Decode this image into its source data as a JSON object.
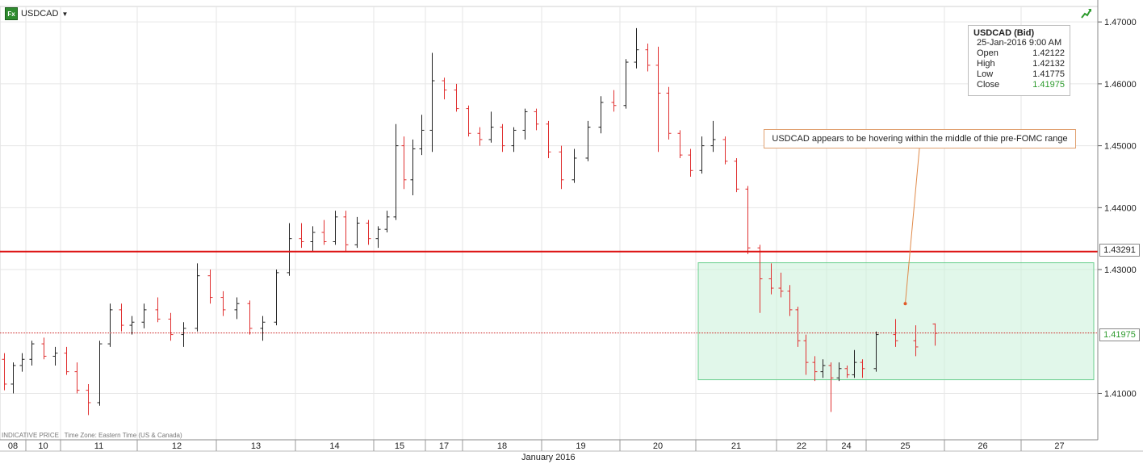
{
  "symbol": "USDCAD",
  "ohlc_box": {
    "title": "USDCAD (Bid)",
    "datetime": "25-Jan-2016 9:00 AM",
    "rows": [
      {
        "label": "Open",
        "value": "1.42122"
      },
      {
        "label": "High",
        "value": "1.42132"
      },
      {
        "label": "Low",
        "value": "1.41775"
      },
      {
        "label": "Close",
        "value": "1.41975"
      }
    ]
  },
  "annotation": "USDCAD appears to be hovering within the middle of thie pre-FOMC range",
  "price_tags": {
    "resistance": "1.43291",
    "current": "1.41975"
  },
  "footer": {
    "indicative": "INDICATIVE PRICE",
    "timezone": "Time Zone: Eastern Time (US & Canada)"
  },
  "month_label": "January 2016",
  "colors": {
    "up": "#222222",
    "down": "#e03030",
    "resistance_line": "#dd1010",
    "current_line": "#cc2222",
    "range_fill": "#c8f0d8",
    "range_stroke": "#6ccf8f",
    "grid": "#e6e6e6"
  },
  "chart_data": {
    "type": "ohlc",
    "title": "",
    "xlabel": "January 2016",
    "ylabel": "",
    "ylim": [
      1.4025,
      1.4725
    ],
    "y_ticks": [
      "1.47000",
      "1.46000",
      "1.45000",
      "1.44000",
      "1.43000",
      "1.41000"
    ],
    "x_ticks": [
      "08",
      "10",
      "11",
      "12",
      "13",
      "14",
      "15",
      "17",
      "18",
      "19",
      "20",
      "21",
      "22",
      "24",
      "25",
      "26",
      "27"
    ],
    "resistance_level": 1.43291,
    "current_close": 1.41975,
    "range_box": {
      "start_session": "21",
      "end_session": "27",
      "low": 1.4122,
      "high": 1.4311
    },
    "annotation_target": {
      "session": "25",
      "price": 1.4245
    },
    "series": [
      {
        "session": "08",
        "bars": [
          [
            1.4155,
            1.4165,
            1.4105,
            1.4115
          ],
          [
            1.4115,
            1.415,
            1.41,
            1.4145
          ],
          [
            1.4145,
            1.4165,
            1.4135,
            1.4155
          ]
        ]
      },
      {
        "session": "10",
        "bars": [
          [
            1.4155,
            1.4185,
            1.4145,
            1.418
          ],
          [
            1.418,
            1.419,
            1.4155,
            1.416
          ],
          [
            1.416,
            1.4175,
            1.4145,
            1.4165
          ]
        ]
      },
      {
        "session": "11",
        "bars": [
          [
            1.4165,
            1.4175,
            1.413,
            1.4135
          ],
          [
            1.4135,
            1.415,
            1.41,
            1.4105
          ],
          [
            1.4105,
            1.4115,
            1.4065,
            1.4085
          ],
          [
            1.4085,
            1.4185,
            1.408,
            1.418
          ],
          [
            1.418,
            1.4245,
            1.4175,
            1.4235
          ],
          [
            1.4235,
            1.4245,
            1.42,
            1.421
          ],
          [
            1.421,
            1.4225,
            1.4195,
            1.4215
          ]
        ]
      },
      {
        "session": "12",
        "bars": [
          [
            1.4215,
            1.4245,
            1.4205,
            1.4235
          ],
          [
            1.4235,
            1.4255,
            1.4215,
            1.422
          ],
          [
            1.422,
            1.423,
            1.4185,
            1.4195
          ],
          [
            1.4195,
            1.4215,
            1.4175,
            1.4205
          ],
          [
            1.4205,
            1.431,
            1.42,
            1.429
          ],
          [
            1.429,
            1.43,
            1.4245,
            1.4255
          ]
        ]
      },
      {
        "session": "13",
        "bars": [
          [
            1.4255,
            1.4265,
            1.4225,
            1.4235
          ],
          [
            1.4235,
            1.4255,
            1.422,
            1.4245
          ],
          [
            1.4245,
            1.425,
            1.4195,
            1.4205
          ],
          [
            1.4205,
            1.4225,
            1.4185,
            1.4215
          ],
          [
            1.4215,
            1.43,
            1.421,
            1.4295
          ],
          [
            1.4295,
            1.4375,
            1.429,
            1.435
          ]
        ]
      },
      {
        "session": "14",
        "bars": [
          [
            1.435,
            1.4375,
            1.4335,
            1.4345
          ],
          [
            1.4345,
            1.437,
            1.433,
            1.436
          ],
          [
            1.436,
            1.438,
            1.434,
            1.4345
          ],
          [
            1.4345,
            1.4395,
            1.434,
            1.4385
          ],
          [
            1.4385,
            1.4395,
            1.433,
            1.434
          ],
          [
            1.434,
            1.4385,
            1.4335,
            1.4375
          ],
          [
            1.4375,
            1.438,
            1.434,
            1.435
          ]
        ]
      },
      {
        "session": "15",
        "bars": [
          [
            1.435,
            1.437,
            1.4335,
            1.4365
          ],
          [
            1.4365,
            1.4395,
            1.436,
            1.4385
          ],
          [
            1.4385,
            1.4535,
            1.438,
            1.45
          ],
          [
            1.45,
            1.4515,
            1.443,
            1.4445
          ],
          [
            1.4445,
            1.451,
            1.442,
            1.4495
          ],
          [
            1.4495,
            1.455,
            1.4485,
            1.4525
          ]
        ]
      },
      {
        "session": "17",
        "bars": [
          [
            1.4525,
            1.465,
            1.449,
            1.4605
          ],
          [
            1.4605,
            1.461,
            1.4575,
            1.459
          ],
          [
            1.459,
            1.46,
            1.4555,
            1.456
          ]
        ]
      },
      {
        "session": "18",
        "bars": [
          [
            1.456,
            1.4565,
            1.4515,
            1.452
          ],
          [
            1.452,
            1.453,
            1.45,
            1.451
          ],
          [
            1.451,
            1.4555,
            1.4505,
            1.453
          ],
          [
            1.453,
            1.4535,
            1.449,
            1.45
          ],
          [
            1.45,
            1.453,
            1.449,
            1.4525
          ],
          [
            1.4525,
            1.456,
            1.451,
            1.4555
          ],
          [
            1.4555,
            1.456,
            1.4525,
            1.4535
          ]
        ]
      },
      {
        "session": "19",
        "bars": [
          [
            1.4535,
            1.454,
            1.448,
            1.449
          ],
          [
            1.449,
            1.45,
            1.443,
            1.4445
          ],
          [
            1.4445,
            1.4495,
            1.444,
            1.448
          ],
          [
            1.448,
            1.454,
            1.4475,
            1.453
          ],
          [
            1.453,
            1.458,
            1.452,
            1.457
          ],
          [
            1.457,
            1.459,
            1.4555,
            1.4565
          ]
        ]
      },
      {
        "session": "20",
        "bars": [
          [
            1.4565,
            1.464,
            1.456,
            1.4635
          ],
          [
            1.4635,
            1.469,
            1.4625,
            1.4655
          ],
          [
            1.4655,
            1.4665,
            1.462,
            1.463
          ],
          [
            1.463,
            1.466,
            1.449,
            1.4585
          ],
          [
            1.4585,
            1.4595,
            1.451,
            1.452
          ],
          [
            1.452,
            1.4525,
            1.448,
            1.4485
          ],
          [
            1.4485,
            1.4495,
            1.445,
            1.446
          ]
        ]
      },
      {
        "session": "21",
        "bars": [
          [
            1.446,
            1.4515,
            1.4455,
            1.45
          ],
          [
            1.45,
            1.454,
            1.449,
            1.451
          ],
          [
            1.451,
            1.4515,
            1.447,
            1.4475
          ],
          [
            1.4475,
            1.448,
            1.4425,
            1.443
          ],
          [
            1.443,
            1.4435,
            1.4325,
            1.4335
          ],
          [
            1.4335,
            1.434,
            1.423,
            1.4285
          ],
          [
            1.4285,
            1.431,
            1.426,
            1.427
          ]
        ]
      },
      {
        "session": "22",
        "bars": [
          [
            1.427,
            1.4295,
            1.4255,
            1.4265
          ],
          [
            1.4265,
            1.4275,
            1.4225,
            1.4235
          ],
          [
            1.4235,
            1.424,
            1.4175,
            1.4185
          ],
          [
            1.4185,
            1.4195,
            1.413,
            1.415
          ],
          [
            1.415,
            1.416,
            1.412,
            1.4135
          ],
          [
            1.4135,
            1.4155,
            1.4125,
            1.4145
          ]
        ]
      },
      {
        "session": "24",
        "bars": [
          [
            1.4145,
            1.415,
            1.407,
            1.4125
          ],
          [
            1.4125,
            1.415,
            1.412,
            1.414
          ],
          [
            1.414,
            1.4145,
            1.4125,
            1.413
          ],
          [
            1.413,
            1.417,
            1.4125,
            1.415
          ],
          [
            1.415,
            1.4155,
            1.4125,
            1.414
          ]
        ]
      },
      {
        "session": "25",
        "bars": [
          [
            1.414,
            1.42,
            1.4135,
            1.4195
          ],
          [
            1.4195,
            1.422,
            1.4175,
            1.4185
          ],
          [
            1.4185,
            1.421,
            1.416,
            1.4175
          ],
          [
            1.4212,
            1.4213,
            1.4177,
            1.4197
          ]
        ]
      }
    ]
  }
}
